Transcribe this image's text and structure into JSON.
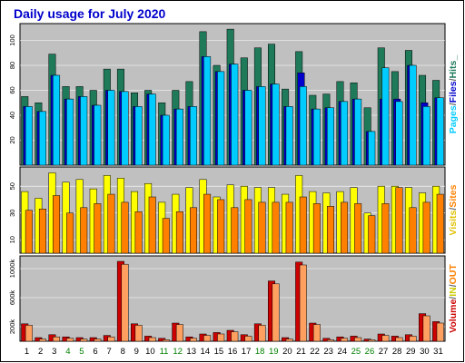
{
  "chart_data": [
    {
      "type": "bar",
      "title": "Daily usage for July 2020",
      "categories": [
        "1",
        "2",
        "3",
        "4",
        "5",
        "6",
        "7",
        "8",
        "9",
        "10",
        "11",
        "12",
        "13",
        "14",
        "15",
        "16",
        "17",
        "18",
        "19",
        "20",
        "21",
        "22",
        "23",
        "24",
        "25",
        "26",
        "27",
        "28",
        "29",
        "30",
        "31"
      ],
      "weekend_categories": [
        "4",
        "5",
        "11",
        "12",
        "18",
        "19",
        "25",
        "26"
      ],
      "yticks": [
        20,
        40,
        60,
        80,
        100
      ],
      "ylim": [
        0,
        112
      ],
      "axis_label_parts": [
        "Pages",
        "/",
        "Files",
        "/",
        "Hits",
        "_"
      ],
      "series": [
        {
          "name": "Hits",
          "color": "#1f7a5a",
          "values": [
            55,
            50,
            89,
            63,
            63,
            60,
            77,
            77,
            58,
            60,
            50,
            60,
            67,
            107,
            80,
            109,
            86,
            94,
            97,
            61,
            91,
            56,
            57,
            67,
            66,
            46,
            94,
            75,
            92,
            72,
            68
          ]
        },
        {
          "name": "Files",
          "color": "#0000cc",
          "values": [
            47,
            43,
            72,
            53,
            55,
            48,
            60,
            59,
            47,
            57,
            40,
            45,
            47,
            87,
            75,
            81,
            60,
            63,
            65,
            47,
            74,
            45,
            46,
            51,
            53,
            27,
            53,
            53,
            80,
            50,
            54
          ]
        },
        {
          "name": "Pages",
          "color": "#00ccff",
          "values": [
            47,
            43,
            72,
            53,
            55,
            48,
            60,
            59,
            47,
            57,
            40,
            45,
            47,
            87,
            75,
            81,
            60,
            63,
            65,
            47,
            63,
            45,
            46,
            51,
            53,
            27,
            78,
            51,
            80,
            47,
            54
          ]
        }
      ]
    },
    {
      "type": "bar",
      "categories": [
        "1",
        "2",
        "3",
        "4",
        "5",
        "6",
        "7",
        "8",
        "9",
        "10",
        "11",
        "12",
        "13",
        "14",
        "15",
        "16",
        "17",
        "18",
        "19",
        "20",
        "21",
        "22",
        "23",
        "24",
        "25",
        "26",
        "27",
        "28",
        "29",
        "30",
        "31"
      ],
      "yticks": [
        10,
        30,
        50
      ],
      "ylim": [
        0,
        63
      ],
      "axis_label_parts": [
        "Visits",
        "/",
        "Sites"
      ],
      "series": [
        {
          "name": "Visits",
          "color": "#ffff00",
          "values": [
            46,
            41,
            60,
            53,
            55,
            48,
            58,
            56,
            46,
            52,
            38,
            44,
            49,
            55,
            42,
            51,
            50,
            49,
            49,
            44,
            58,
            46,
            45,
            46,
            49,
            30,
            50,
            50,
            49,
            45,
            50
          ]
        },
        {
          "name": "Sites",
          "color": "#ff8000",
          "values": [
            32,
            33,
            43,
            30,
            34,
            37,
            44,
            38,
            31,
            42,
            26,
            31,
            34,
            44,
            40,
            34,
            40,
            38,
            38,
            38,
            42,
            37,
            35,
            38,
            37,
            28,
            37,
            49,
            34,
            38,
            44
          ]
        }
      ]
    },
    {
      "type": "bar",
      "categories": [
        "1",
        "2",
        "3",
        "4",
        "5",
        "6",
        "7",
        "8",
        "9",
        "10",
        "11",
        "12",
        "13",
        "14",
        "15",
        "16",
        "17",
        "18",
        "19",
        "20",
        "21",
        "22",
        "23",
        "24",
        "25",
        "26",
        "27",
        "28",
        "29",
        "30",
        "31"
      ],
      "yticks": [
        200000,
        600000,
        1000000
      ],
      "ytick_labels": [
        "200k",
        "600k",
        "1000k"
      ],
      "ylim": [
        0,
        1150000
      ],
      "axis_label_parts": [
        "Volume",
        "/",
        "IN",
        "/",
        "OUT"
      ],
      "series": [
        {
          "name": "Volume",
          "color": "#cc0000",
          "values": [
            240000,
            50000,
            90000,
            60000,
            50000,
            50000,
            80000,
            1100000,
            240000,
            70000,
            40000,
            250000,
            60000,
            100000,
            120000,
            150000,
            90000,
            240000,
            830000,
            50000,
            1090000,
            250000,
            40000,
            60000,
            70000,
            30000,
            100000,
            70000,
            90000,
            380000,
            270000
          ]
        },
        {
          "name": "OUT",
          "color": "#ffa060",
          "values": [
            220000,
            30000,
            60000,
            40000,
            30000,
            30000,
            60000,
            1060000,
            220000,
            50000,
            20000,
            230000,
            40000,
            80000,
            100000,
            130000,
            70000,
            220000,
            790000,
            30000,
            1050000,
            230000,
            20000,
            40000,
            50000,
            20000,
            80000,
            50000,
            70000,
            350000,
            250000
          ]
        }
      ]
    }
  ]
}
